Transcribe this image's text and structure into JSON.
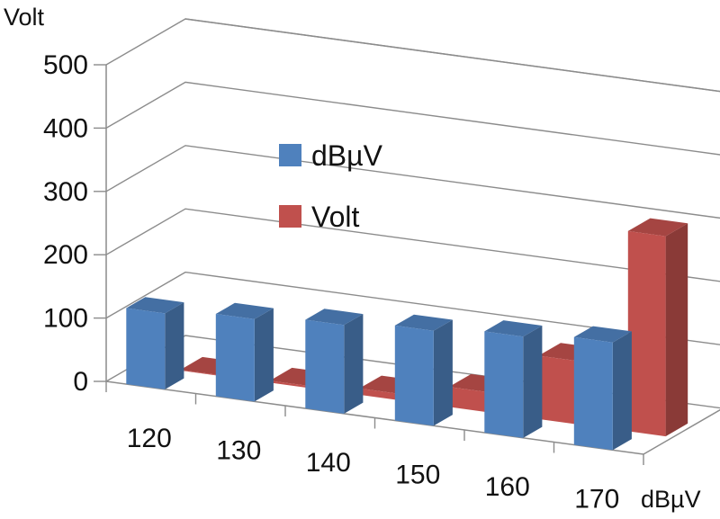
{
  "chart_data": {
    "type": "bar",
    "subtype": "3d-clustered",
    "categories": [
      "120",
      "130",
      "140",
      "150",
      "160",
      "170"
    ],
    "series": [
      {
        "name": "dBµV",
        "values": [
          120,
          130,
          140,
          150,
          160,
          170
        ],
        "color": "#4f81bd"
      },
      {
        "name": "Volt",
        "values": [
          1,
          3.16,
          10,
          31.6,
          100,
          316
        ],
        "color": "#c0504d"
      }
    ],
    "xlabel": "dBµV",
    "ylabel": "Volt",
    "ylim": [
      0,
      500
    ],
    "yticks": [
      "0",
      "100",
      "200",
      "300",
      "400",
      "500"
    ],
    "grid": true,
    "legend": "center"
  }
}
